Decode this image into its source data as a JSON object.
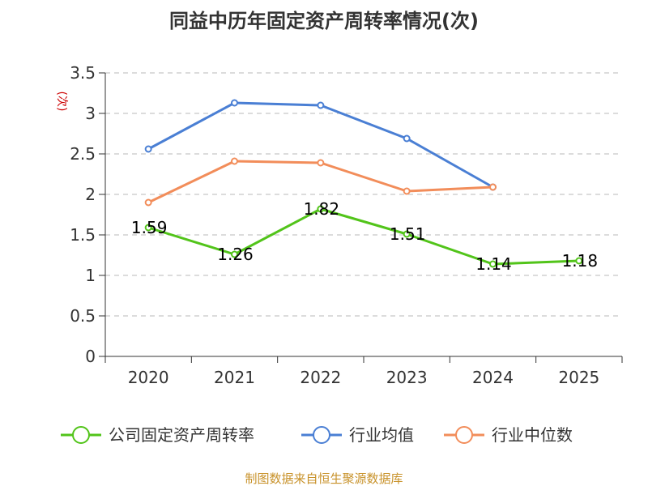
{
  "title": "同益中历年固定资产周转率情况(次)",
  "unit_label": "(次)",
  "source": "制图数据来自恒生聚源数据库",
  "chart_data": {
    "type": "line",
    "categories": [
      "2020",
      "2021",
      "2022",
      "2023",
      "2024",
      "2025"
    ],
    "ylim": [
      0,
      3.5
    ],
    "yticks": [
      "0",
      "0.5",
      "1",
      "1.5",
      "2",
      "2.5",
      "3",
      "3.5"
    ],
    "grid": true,
    "legend_position": "bottom",
    "series": [
      {
        "name": "公司固定资产周转率",
        "color": "#52c41a",
        "values": [
          1.59,
          1.26,
          1.82,
          1.51,
          1.14,
          1.18
        ],
        "labels": [
          "1.59",
          "1.26",
          "1.82",
          "1.51",
          "1.14",
          "1.18"
        ]
      },
      {
        "name": "行业均值",
        "color": "#4a7fd4",
        "values": [
          2.56,
          3.13,
          3.1,
          2.69,
          2.09,
          null
        ]
      },
      {
        "name": "行业中位数",
        "color": "#f28d5a",
        "values": [
          1.9,
          2.41,
          2.39,
          2.04,
          2.09,
          null
        ]
      }
    ]
  }
}
